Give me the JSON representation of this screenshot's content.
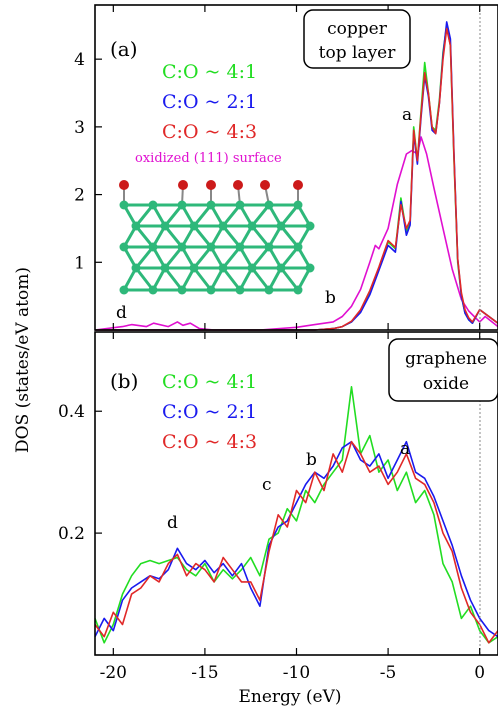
{
  "figure": {
    "xlabel": "Energy (eV)",
    "ylabel": "DOS (states/eV atom)"
  },
  "colors": {
    "green": "#22dd22",
    "blue": "#1a1aee",
    "red": "#e02828",
    "magenta": "#e010d0"
  },
  "chart_data": [
    {
      "type": "line",
      "panel_label": "(a)",
      "box_text": [
        "copper",
        "top layer"
      ],
      "inset_label": "oxidized (111) surface",
      "annotations": [
        "a",
        "b",
        "d"
      ],
      "xlim": [
        -21,
        1
      ],
      "ylim": [
        0,
        4.8
      ],
      "x_ticks": [
        -20,
        -15,
        -10,
        -5,
        0
      ],
      "y_ticks": [
        1,
        2,
        3,
        4
      ],
      "legend_placement": "top-left",
      "series": [
        {
          "name": "C:O ~ 4:1",
          "color": "green",
          "x": [
            -21,
            -12,
            -9,
            -8,
            -7.5,
            -7,
            -6.5,
            -6,
            -5.5,
            -5,
            -4.6,
            -4.3,
            -4.0,
            -3.8,
            -3.6,
            -3.4,
            -3.2,
            -3.0,
            -2.8,
            -2.6,
            -2.4,
            -2.2,
            -2.0,
            -1.8,
            -1.6,
            -1.4,
            -1.2,
            -1.0,
            -0.8,
            -0.6,
            -0.4,
            0,
            1
          ],
          "y": [
            0,
            0,
            0,
            0.02,
            0.05,
            0.12,
            0.28,
            0.55,
            0.9,
            1.3,
            1.2,
            1.95,
            1.45,
            1.6,
            3.0,
            2.5,
            3.25,
            3.95,
            3.5,
            3.0,
            2.95,
            3.4,
            4.1,
            4.5,
            4.2,
            2.5,
            1.0,
            0.5,
            0.25,
            0.15,
            0.1,
            0.3,
            0.1
          ]
        },
        {
          "name": "C:O ~ 2:1",
          "color": "blue",
          "x": [
            -21,
            -12,
            -9,
            -8,
            -7.5,
            -7,
            -6.5,
            -6,
            -5.5,
            -5,
            -4.6,
            -4.3,
            -4.0,
            -3.8,
            -3.6,
            -3.4,
            -3.2,
            -3.0,
            -2.8,
            -2.6,
            -2.4,
            -2.2,
            -2.0,
            -1.8,
            -1.6,
            -1.4,
            -1.2,
            -1.0,
            -0.8,
            -0.6,
            -0.4,
            0,
            1
          ],
          "y": [
            0,
            0,
            0,
            0.02,
            0.05,
            0.12,
            0.26,
            0.52,
            0.88,
            1.25,
            1.15,
            1.9,
            1.4,
            1.55,
            2.9,
            2.45,
            3.15,
            3.75,
            3.45,
            2.95,
            2.9,
            3.35,
            4.05,
            4.55,
            4.3,
            2.6,
            1.05,
            0.5,
            0.25,
            0.15,
            0.1,
            0.3,
            0.1
          ]
        },
        {
          "name": "C:O ~ 4:3",
          "color": "red",
          "x": [
            -21,
            -12,
            -9,
            -8,
            -7.5,
            -7,
            -6.5,
            -6,
            -5.5,
            -5,
            -4.6,
            -4.3,
            -4.0,
            -3.8,
            -3.6,
            -3.4,
            -3.2,
            -3.0,
            -2.8,
            -2.6,
            -2.4,
            -2.2,
            -2.0,
            -1.8,
            -1.6,
            -1.4,
            -1.2,
            -1.0,
            -0.8,
            -0.6,
            -0.4,
            0,
            1
          ],
          "y": [
            0,
            0,
            0,
            0.02,
            0.05,
            0.13,
            0.3,
            0.58,
            0.93,
            1.32,
            1.22,
            1.85,
            1.5,
            1.62,
            2.95,
            2.5,
            3.2,
            3.8,
            3.5,
            3.0,
            2.9,
            3.35,
            4.0,
            4.45,
            4.2,
            2.55,
            1.05,
            0.55,
            0.3,
            0.18,
            0.12,
            0.3,
            0.1
          ]
        },
        {
          "name": "oxidized (111) surface",
          "color": "magenta",
          "x": [
            -21,
            -19.5,
            -19,
            -18.2,
            -17.8,
            -17.0,
            -16.5,
            -16.2,
            -15.8,
            -15.3,
            -14.5,
            -12.0,
            -10.0,
            -9.0,
            -8.0,
            -7.5,
            -7.0,
            -6.5,
            -6.0,
            -5.7,
            -5.5,
            -5.0,
            -4.5,
            -4.0,
            -3.7,
            -3.4,
            -3.2,
            -2.9,
            -2.5,
            -2.0,
            -1.5,
            -1.0,
            -0.6,
            -0.3,
            0,
            0.3,
            1
          ],
          "y": [
            0,
            0.05,
            0.08,
            0.05,
            0.1,
            0.05,
            0.12,
            0.07,
            0.1,
            0.02,
            0,
            0,
            0.04,
            0.08,
            0.12,
            0.2,
            0.35,
            0.6,
            1.0,
            1.25,
            1.2,
            1.5,
            2.15,
            2.6,
            2.65,
            2.6,
            2.85,
            2.6,
            2.1,
            1.5,
            0.9,
            0.45,
            0.28,
            0.2,
            0.12,
            0.2,
            0.05
          ]
        }
      ]
    },
    {
      "type": "line",
      "panel_label": "(b)",
      "box_text": [
        "graphene",
        "oxide"
      ],
      "annotations": [
        "a",
        "b",
        "c",
        "d"
      ],
      "xlim": [
        -21,
        1
      ],
      "ylim": [
        0,
        0.53
      ],
      "x_ticks": [
        -20,
        -15,
        -10,
        -5,
        0
      ],
      "y_ticks": [
        0.2,
        0.4
      ],
      "legend_placement": "top-left",
      "series": [
        {
          "name": "C:O ~ 4:1",
          "color": "green",
          "x": [
            -21,
            -20.5,
            -20,
            -19.5,
            -19,
            -18.5,
            -18,
            -17.5,
            -17,
            -16.5,
            -16,
            -15.5,
            -15,
            -14.5,
            -14,
            -13.5,
            -13,
            -12.5,
            -12,
            -11.5,
            -11,
            -10.5,
            -10,
            -9.5,
            -9,
            -8.5,
            -8,
            -7.5,
            -7,
            -6.5,
            -6,
            -5.5,
            -5,
            -4.5,
            -4,
            -3.5,
            -3,
            -2.5,
            -2,
            -1.5,
            -1,
            -0.5,
            0,
            0.5,
            1
          ],
          "y": [
            0.06,
            0.02,
            0.05,
            0.1,
            0.13,
            0.15,
            0.155,
            0.15,
            0.155,
            0.16,
            0.14,
            0.13,
            0.15,
            0.12,
            0.14,
            0.125,
            0.14,
            0.16,
            0.13,
            0.19,
            0.2,
            0.24,
            0.22,
            0.27,
            0.25,
            0.28,
            0.3,
            0.32,
            0.44,
            0.33,
            0.36,
            0.3,
            0.32,
            0.27,
            0.3,
            0.25,
            0.27,
            0.23,
            0.15,
            0.12,
            0.06,
            0.08,
            0.04,
            0.02,
            0.03
          ]
        },
        {
          "name": "C:O ~ 2:1",
          "color": "blue",
          "x": [
            -21,
            -20.5,
            -20,
            -19.5,
            -19,
            -18.5,
            -18,
            -17.5,
            -17,
            -16.5,
            -16,
            -15.5,
            -15,
            -14.5,
            -14,
            -13.5,
            -13,
            -12.5,
            -12,
            -11.5,
            -11,
            -10.5,
            -10,
            -9.5,
            -9,
            -8.5,
            -8,
            -7.5,
            -7,
            -6.5,
            -6,
            -5.5,
            -5,
            -4.5,
            -4,
            -3.5,
            -3,
            -2.5,
            -2,
            -1.5,
            -1,
            -0.5,
            0,
            0.5,
            1
          ],
          "y": [
            0.03,
            0.06,
            0.04,
            0.09,
            0.11,
            0.12,
            0.13,
            0.125,
            0.14,
            0.175,
            0.15,
            0.14,
            0.155,
            0.135,
            0.15,
            0.13,
            0.15,
            0.11,
            0.08,
            0.18,
            0.21,
            0.22,
            0.25,
            0.28,
            0.3,
            0.29,
            0.31,
            0.34,
            0.35,
            0.32,
            0.31,
            0.33,
            0.29,
            0.32,
            0.35,
            0.3,
            0.29,
            0.26,
            0.22,
            0.18,
            0.13,
            0.09,
            0.06,
            0.04,
            0.03
          ]
        },
        {
          "name": "C:O ~ 4:3",
          "color": "red",
          "x": [
            -21,
            -20.5,
            -20,
            -19.5,
            -19,
            -18.5,
            -18,
            -17.5,
            -17,
            -16.5,
            -16,
            -15.5,
            -15,
            -14.5,
            -14,
            -13.5,
            -13,
            -12.5,
            -12,
            -11.5,
            -11,
            -10.5,
            -10,
            -9.5,
            -9,
            -8.5,
            -8,
            -7.5,
            -7,
            -6.5,
            -6,
            -5.5,
            -5,
            -4.5,
            -4,
            -3.5,
            -3,
            -2.5,
            -2,
            -1.5,
            -1,
            -0.5,
            0,
            0.5,
            1
          ],
          "y": [
            0.05,
            0.03,
            0.07,
            0.05,
            0.1,
            0.11,
            0.13,
            0.12,
            0.15,
            0.165,
            0.13,
            0.15,
            0.14,
            0.12,
            0.16,
            0.14,
            0.12,
            0.12,
            0.09,
            0.17,
            0.23,
            0.21,
            0.27,
            0.25,
            0.3,
            0.27,
            0.33,
            0.3,
            0.35,
            0.33,
            0.3,
            0.31,
            0.28,
            0.3,
            0.33,
            0.29,
            0.28,
            0.25,
            0.2,
            0.17,
            0.11,
            0.07,
            0.05,
            0.02,
            0.04
          ]
        }
      ]
    }
  ]
}
